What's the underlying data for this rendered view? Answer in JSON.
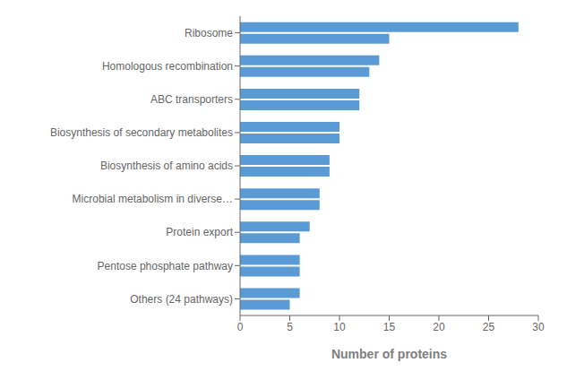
{
  "chart_data": {
    "type": "bar",
    "orientation": "horizontal",
    "categories": [
      "Ribosome",
      "Homologous recombination",
      "ABC transporters",
      "Biosynthesis of secondary metabolites",
      "Biosynthesis of amino acids",
      "Microbial metabolism in diverse…",
      "Protein export",
      "Pentose phosphate pathway",
      "Others (24 pathways)"
    ],
    "series": [
      {
        "color": "#5b9bd5",
        "values": [
          28,
          14,
          12,
          10,
          9,
          8,
          7,
          6,
          6
        ]
      },
      {
        "color": "#5b9bd5",
        "values": [
          15,
          13,
          12,
          10,
          9,
          8,
          6,
          6,
          5
        ]
      }
    ],
    "xlabel": "Number of proteins",
    "xlim": [
      0,
      30
    ],
    "xticks": [
      0,
      5,
      10,
      15,
      20,
      25,
      30
    ],
    "grid": false
  }
}
